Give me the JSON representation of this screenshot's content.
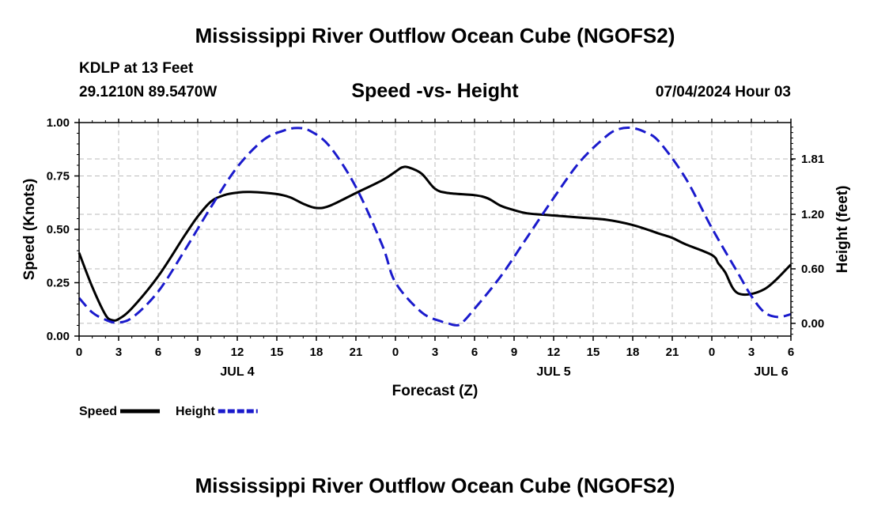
{
  "header": {
    "title": "Mississippi River Outflow Ocean Cube (NGOFS2)",
    "station": "KDLP at 13 Feet",
    "coordinates": "29.1210N  89.5470W",
    "subtitle": "Speed -vs- Height",
    "datetime": "07/04/2024 Hour 03"
  },
  "footer": {
    "title": "Mississippi River Outflow Ocean Cube (NGOFS2)"
  },
  "colors": {
    "speed": "#000000",
    "height": "#1a1acc",
    "grid": "#bbbbbb"
  },
  "chart_data": {
    "type": "line",
    "title": "Speed -vs- Height",
    "xlabel": "Forecast (Z)",
    "ylabel": "Speed (Knots)",
    "y2label": "Height (feet)",
    "xlim": [
      0,
      54
    ],
    "ylim": [
      0,
      1
    ],
    "y2lim": [
      -0.14,
      2.21
    ],
    "x_ticks": [
      0,
      3,
      6,
      9,
      12,
      15,
      18,
      21,
      24,
      27,
      30,
      33,
      36,
      39,
      42,
      45,
      48,
      51,
      54
    ],
    "x_tick_labels": [
      "0",
      "3",
      "6",
      "9",
      "12",
      "15",
      "18",
      "21",
      "0",
      "3",
      "6",
      "9",
      "12",
      "15",
      "18",
      "21",
      "0",
      "3",
      "6"
    ],
    "date_labels": [
      {
        "x": 12,
        "label": "JUL 4"
      },
      {
        "x": 36,
        "label": "JUL 5"
      },
      {
        "x": 52.5,
        "label": "JUL 6"
      }
    ],
    "y_ticks": [
      0,
      0.25,
      0.5,
      0.75,
      1.0
    ],
    "y_tick_labels": [
      "0.00",
      "0.25",
      "0.50",
      "0.75",
      "1.00"
    ],
    "y2_ticks": [
      0,
      0.6,
      1.2,
      1.81
    ],
    "y2_tick_labels": [
      "0.00",
      "0.60",
      "1.20",
      "1.81"
    ],
    "grid": true,
    "series": [
      {
        "name": "Speed",
        "axis": "left",
        "style": "solid",
        "x": [
          0,
          1,
          2,
          2.5,
          3,
          4,
          6,
          8,
          9,
          10,
          11,
          12,
          13,
          15,
          16,
          17,
          18,
          19,
          21,
          23,
          24,
          24.5,
          25,
          26,
          27,
          28,
          30,
          31,
          32,
          33,
          34,
          36,
          38,
          40,
          42,
          44,
          45,
          46,
          48,
          48.5,
          49,
          50,
          52,
          54
        ],
        "values": [
          0.39,
          0.23,
          0.1,
          0.075,
          0.08,
          0.13,
          0.28,
          0.47,
          0.56,
          0.63,
          0.66,
          0.672,
          0.675,
          0.665,
          0.65,
          0.62,
          0.6,
          0.61,
          0.67,
          0.73,
          0.77,
          0.79,
          0.79,
          0.76,
          0.69,
          0.67,
          0.66,
          0.645,
          0.61,
          0.59,
          0.575,
          0.565,
          0.555,
          0.545,
          0.52,
          0.48,
          0.46,
          0.43,
          0.38,
          0.34,
          0.3,
          0.2,
          0.22,
          0.335
        ]
      },
      {
        "name": "Height",
        "axis": "right",
        "style": "dashed",
        "x": [
          0,
          1,
          2,
          2.8,
          4,
          6,
          8,
          10,
          12,
          14,
          15.5,
          16.5,
          17.5,
          19,
          21,
          23,
          24,
          26,
          27.5,
          28,
          28.5,
          29,
          30,
          32,
          34,
          36,
          38,
          40,
          41,
          42,
          43,
          44,
          46,
          48,
          50,
          51,
          52,
          53,
          54
        ],
        "values": [
          0.28,
          0.12,
          0.04,
          0.01,
          0.06,
          0.35,
          0.8,
          1.28,
          1.72,
          2.02,
          2.12,
          2.15,
          2.12,
          1.95,
          1.5,
          0.86,
          0.45,
          0.12,
          0.02,
          0.0,
          -0.02,
          0.0,
          0.16,
          0.52,
          0.95,
          1.38,
          1.78,
          2.06,
          2.14,
          2.15,
          2.1,
          2.0,
          1.6,
          1.05,
          0.55,
          0.3,
          0.12,
          0.07,
          0.1
        ]
      }
    ],
    "legend": [
      {
        "label": "Speed",
        "series": "Speed"
      },
      {
        "label": "Height",
        "series": "Height"
      }
    ],
    "legend_position": "bottom-left"
  }
}
